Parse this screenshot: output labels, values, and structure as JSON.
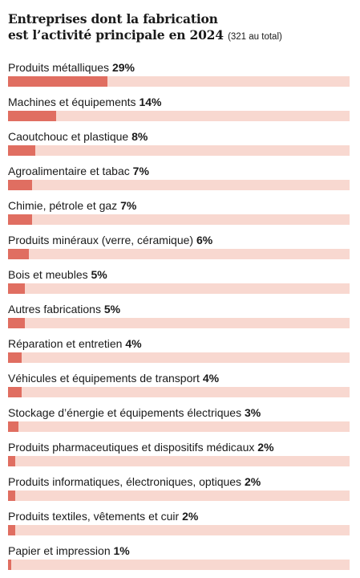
{
  "chart_data": {
    "type": "bar",
    "orientation": "horizontal",
    "title_line1": "Entreprises dont la fabrication",
    "title_line2": "est l’activité principale en 2024",
    "subtitle": "(321 au total)",
    "xlim": [
      0,
      100
    ],
    "unit_suffix": "%",
    "grid": false,
    "legend": "none",
    "colors": {
      "bar": "#e06e61",
      "track": "#f8d8d0",
      "text": "#1a1a1a"
    },
    "categories": [
      "Produits métalliques",
      "Machines et équipements",
      "Caoutchouc et plastique",
      "Agroalimentaire et tabac",
      "Chimie, pétrole et gaz",
      "Produits minéraux (verre, céramique)",
      "Bois et meubles",
      "Autres fabrications",
      "Réparation et entretien",
      "Véhicules et équipements de transport",
      "Stockage d’énergie et équipements électriques",
      "Produits pharmaceutiques et dispositifs médicaux",
      "Produits informatiques, électroniques, optiques",
      "Produits textiles, vêtements et cuir",
      "Papier et impression"
    ],
    "values": [
      29,
      14,
      8,
      7,
      7,
      6,
      5,
      5,
      4,
      4,
      3,
      2,
      2,
      2,
      1
    ],
    "value_labels": [
      "29%",
      "14%",
      "8%",
      "7%",
      "7%",
      "6%",
      "5%",
      "5%",
      "4%",
      "4%",
      "3%",
      "2%",
      "2%",
      "2%",
      "1%"
    ]
  }
}
